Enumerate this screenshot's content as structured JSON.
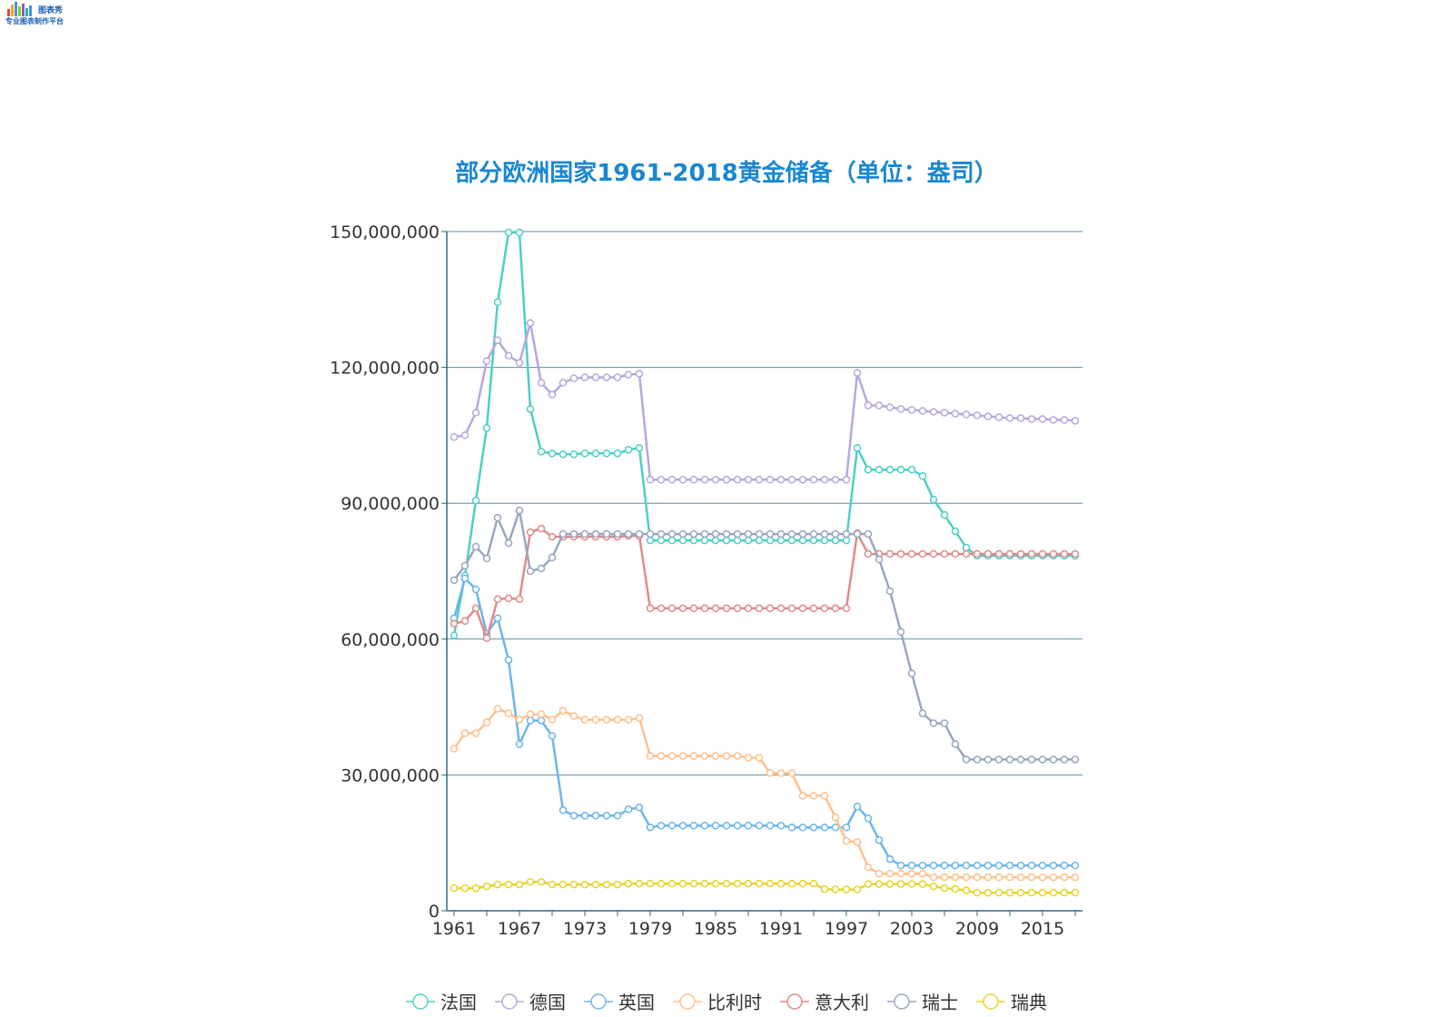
{
  "logo": {
    "line1": "图表秀",
    "line2": "专业图表制作平台"
  },
  "chart_data": {
    "type": "line",
    "title": "部分欧洲国家1961-2018黄金储备（单位：盎司）",
    "ylim": [
      0,
      150000000
    ],
    "yticks": [
      0,
      30000000,
      60000000,
      90000000,
      120000000,
      150000000
    ],
    "ytick_labels": [
      "0",
      "30,000,000",
      "60,000,000",
      "90,000,000",
      "120,000,000",
      "150,000,000"
    ],
    "x": [
      1961,
      1962,
      1963,
      1964,
      1965,
      1966,
      1967,
      1968,
      1969,
      1970,
      1971,
      1972,
      1973,
      1974,
      1975,
      1976,
      1977,
      1978,
      1979,
      1980,
      1981,
      1982,
      1983,
      1984,
      1985,
      1986,
      1987,
      1988,
      1989,
      1990,
      1991,
      1992,
      1993,
      1994,
      1995,
      1996,
      1997,
      1998,
      1999,
      2000,
      2001,
      2002,
      2003,
      2004,
      2005,
      2006,
      2007,
      2008,
      2009,
      2010,
      2011,
      2012,
      2013,
      2014,
      2015,
      2016,
      2017,
      2018
    ],
    "xtick_labels": [
      "1961",
      "1967",
      "1973",
      "1979",
      "1985",
      "1991",
      "1997",
      "2003",
      "2009",
      "2015"
    ],
    "grid": true,
    "legend_position": "bottom",
    "series": [
      {
        "name": "法国",
        "color": "#4ecfc6",
        "values": [
          60800000,
          74000000,
          90600000,
          106600000,
          134400000,
          149800000,
          149800000,
          110800000,
          101400000,
          101000000,
          100800000,
          100800000,
          101000000,
          101000000,
          101000000,
          101000000,
          101800000,
          102200000,
          81800000,
          81800000,
          81800000,
          81800000,
          81800000,
          81800000,
          81800000,
          81800000,
          81800000,
          81800000,
          81800000,
          81800000,
          81800000,
          81800000,
          81800000,
          81800000,
          81800000,
          81800000,
          81800000,
          102200000,
          97400000,
          97400000,
          97400000,
          97400000,
          97400000,
          96000000,
          90800000,
          87400000,
          83800000,
          80200000,
          78400000,
          78400000,
          78400000,
          78400000,
          78400000,
          78400000,
          78400000,
          78400000,
          78400000,
          78400000
        ]
      },
      {
        "name": "德国",
        "color": "#b7a7e0",
        "values": [
          104600000,
          105000000,
          110000000,
          121400000,
          126000000,
          122600000,
          121000000,
          129800000,
          116600000,
          114000000,
          116600000,
          117600000,
          117800000,
          117800000,
          117800000,
          117800000,
          118400000,
          118600000,
          95200000,
          95200000,
          95200000,
          95200000,
          95200000,
          95200000,
          95200000,
          95200000,
          95200000,
          95200000,
          95200000,
          95200000,
          95200000,
          95200000,
          95200000,
          95200000,
          95200000,
          95200000,
          95200000,
          118800000,
          111600000,
          111600000,
          111200000,
          110800000,
          110600000,
          110400000,
          110200000,
          110000000,
          109800000,
          109600000,
          109400000,
          109200000,
          109000000,
          108800000,
          108800000,
          108600000,
          108600000,
          108400000,
          108400000,
          108200000
        ]
      },
      {
        "name": "英国",
        "color": "#6bb6ea",
        "values": [
          64600000,
          73400000,
          71000000,
          61200000,
          64600000,
          55400000,
          36800000,
          42000000,
          42000000,
          38600000,
          22200000,
          21000000,
          21000000,
          21000000,
          21000000,
          21000000,
          22400000,
          22800000,
          18400000,
          18800000,
          18800000,
          18800000,
          18800000,
          18800000,
          18800000,
          18800000,
          18800000,
          18800000,
          18800000,
          18800000,
          18800000,
          18400000,
          18400000,
          18400000,
          18400000,
          18400000,
          18400000,
          23000000,
          20400000,
          15600000,
          11400000,
          10000000,
          10000000,
          10000000,
          10000000,
          10000000,
          10000000,
          10000000,
          10000000,
          10000000,
          10000000,
          10000000,
          10000000,
          10000000,
          10000000,
          10000000,
          10000000,
          10000000
        ]
      },
      {
        "name": "比利时",
        "color": "#ffc08c",
        "values": [
          35800000,
          39200000,
          39200000,
          41600000,
          44600000,
          43600000,
          42200000,
          43400000,
          43400000,
          42200000,
          44200000,
          43000000,
          42200000,
          42200000,
          42200000,
          42200000,
          42200000,
          42600000,
          34200000,
          34200000,
          34200000,
          34200000,
          34200000,
          34200000,
          34200000,
          34200000,
          34200000,
          33800000,
          33800000,
          30400000,
          30400000,
          30400000,
          25400000,
          25400000,
          25400000,
          20600000,
          15400000,
          15200000,
          9600000,
          8200000,
          8200000,
          8200000,
          8200000,
          8200000,
          7400000,
          7400000,
          7400000,
          7400000,
          7400000,
          7400000,
          7400000,
          7400000,
          7400000,
          7400000,
          7400000,
          7400000,
          7400000,
          7400000
        ]
      },
      {
        "name": "意大利",
        "color": "#e08a8a",
        "values": [
          63400000,
          64000000,
          66800000,
          60200000,
          68800000,
          69000000,
          68800000,
          83600000,
          84400000,
          82600000,
          82600000,
          82600000,
          82600000,
          82600000,
          82600000,
          82600000,
          82800000,
          82800000,
          66800000,
          66800000,
          66800000,
          66800000,
          66800000,
          66800000,
          66800000,
          66800000,
          66800000,
          66800000,
          66800000,
          66800000,
          66800000,
          66800000,
          66800000,
          66800000,
          66800000,
          66800000,
          66800000,
          83400000,
          78800000,
          78800000,
          78800000,
          78800000,
          78800000,
          78800000,
          78800000,
          78800000,
          78800000,
          78800000,
          78800000,
          78800000,
          78800000,
          78800000,
          78800000,
          78800000,
          78800000,
          78800000,
          78800000,
          78800000
        ]
      },
      {
        "name": "瑞士",
        "color": "#9aa6bf",
        "values": [
          73000000,
          76200000,
          80400000,
          77800000,
          86800000,
          81200000,
          88400000,
          75000000,
          75600000,
          78000000,
          83200000,
          83200000,
          83200000,
          83200000,
          83200000,
          83200000,
          83200000,
          83200000,
          83200000,
          83200000,
          83200000,
          83200000,
          83200000,
          83200000,
          83200000,
          83200000,
          83200000,
          83200000,
          83200000,
          83200000,
          83200000,
          83200000,
          83200000,
          83200000,
          83200000,
          83200000,
          83200000,
          83200000,
          83200000,
          77600000,
          70600000,
          61600000,
          52400000,
          43600000,
          41400000,
          41400000,
          36800000,
          33400000,
          33400000,
          33400000,
          33400000,
          33400000,
          33400000,
          33400000,
          33400000,
          33400000,
          33400000,
          33400000
        ]
      },
      {
        "name": "瑞典",
        "color": "#e5d52c",
        "values": [
          5000000,
          5000000,
          5000000,
          5400000,
          5800000,
          5800000,
          5800000,
          6400000,
          6400000,
          5800000,
          5800000,
          5800000,
          5800000,
          5800000,
          5800000,
          5800000,
          6000000,
          6000000,
          6000000,
          6000000,
          6000000,
          6000000,
          6000000,
          6000000,
          6000000,
          6000000,
          6000000,
          6000000,
          6000000,
          6000000,
          6000000,
          6000000,
          6000000,
          6000000,
          4800000,
          4700000,
          4700000,
          4700000,
          5900000,
          5900000,
          5900000,
          5900000,
          5900000,
          5900000,
          5400000,
          5000000,
          4800000,
          4500000,
          4000000,
          4000000,
          4000000,
          4000000,
          4000000,
          4000000,
          4000000,
          4000000,
          4000000,
          4000000
        ]
      }
    ]
  }
}
